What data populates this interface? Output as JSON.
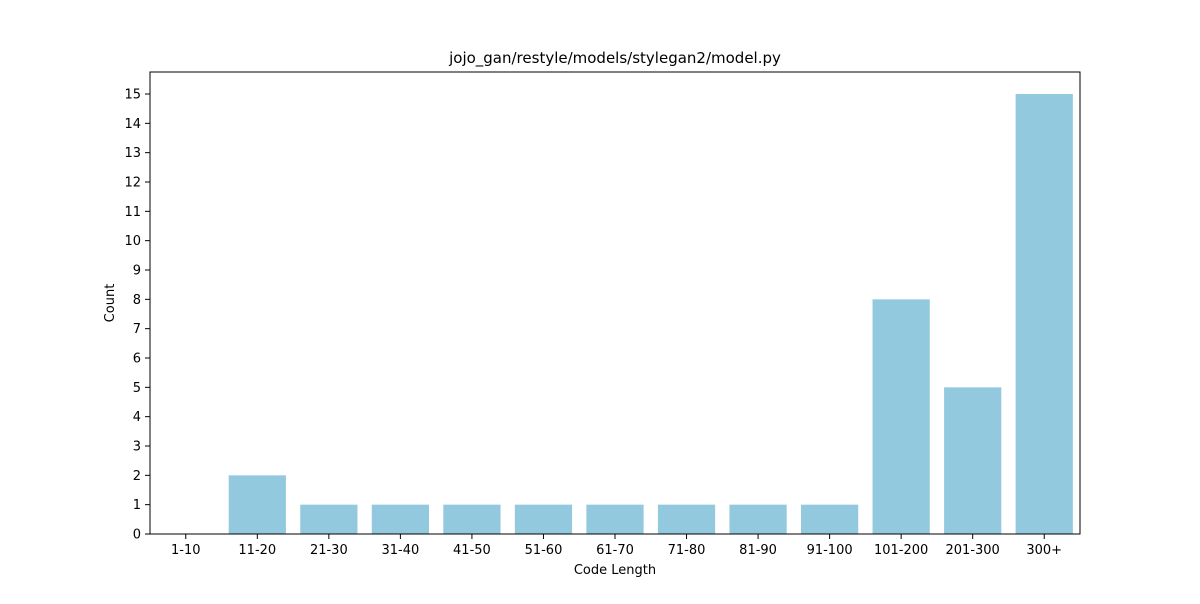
{
  "chart_data": {
    "type": "bar",
    "title": "jojo_gan/restyle/models/stylegan2/model.py",
    "xlabel": "Code Length",
    "ylabel": "Count",
    "categories": [
      "1-10",
      "11-20",
      "21-30",
      "31-40",
      "41-50",
      "51-60",
      "61-70",
      "71-80",
      "81-90",
      "91-100",
      "101-200",
      "201-300",
      "300+"
    ],
    "values": [
      0,
      2,
      1,
      1,
      1,
      1,
      1,
      1,
      1,
      1,
      8,
      5,
      15
    ],
    "yticks": [
      0,
      1,
      2,
      3,
      4,
      5,
      6,
      7,
      8,
      9,
      10,
      11,
      12,
      13,
      14,
      15
    ],
    "ylim": [
      0,
      15.75
    ],
    "bar_color": "#92c9de",
    "grid": false,
    "legend": "none"
  }
}
